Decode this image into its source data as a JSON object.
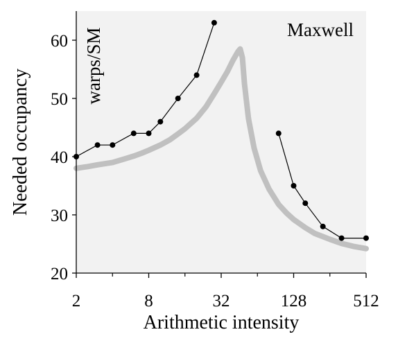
{
  "chart_data": {
    "type": "line",
    "title": "",
    "xlabel": "Arithmetic intensity",
    "ylabel": "Needed occupancy",
    "x_scale": "log2",
    "xlim": [
      2,
      512
    ],
    "ylim": [
      20,
      65
    ],
    "x_ticks": [
      2,
      8,
      32,
      128,
      512
    ],
    "x_minor_ticks": [
      4,
      16,
      64,
      256
    ],
    "x_tick_labels": [
      "2",
      "8",
      "32",
      "128",
      "512"
    ],
    "y_ticks": [
      20,
      30,
      40,
      50,
      60
    ],
    "y_tick_labels": [
      "20",
      "30",
      "40",
      "50",
      "60"
    ],
    "grid": false,
    "annotations": [
      "warps/SM",
      "Maxwell"
    ],
    "series": [
      {
        "name": "",
        "style": "thick-curve",
        "color": "#c0c0c0",
        "points": [
          [
            2,
            38.0
          ],
          [
            2.5,
            38.3
          ],
          [
            3,
            38.6
          ],
          [
            4,
            39.0
          ],
          [
            5,
            39.6
          ],
          [
            6,
            40.1
          ],
          [
            7,
            40.6
          ],
          [
            8,
            41.1
          ],
          [
            10,
            42.0
          ],
          [
            12,
            42.9
          ],
          [
            14,
            43.9
          ],
          [
            16,
            44.8
          ],
          [
            20,
            46.6
          ],
          [
            24,
            48.6
          ],
          [
            28,
            50.8
          ],
          [
            32,
            52.8
          ],
          [
            36,
            54.6
          ],
          [
            40,
            56.5
          ],
          [
            44,
            58.0
          ],
          [
            46,
            58.5
          ],
          [
            48,
            57.0
          ],
          [
            50,
            52.5
          ],
          [
            54,
            46.5
          ],
          [
            60,
            41.5
          ],
          [
            68,
            37.6
          ],
          [
            80,
            34.4
          ],
          [
            96,
            31.8
          ],
          [
            112,
            30.3
          ],
          [
            128,
            29.2
          ],
          [
            160,
            27.8
          ],
          [
            192,
            26.8
          ],
          [
            256,
            25.8
          ],
          [
            320,
            25.1
          ],
          [
            400,
            24.6
          ],
          [
            512,
            24.2
          ]
        ]
      },
      {
        "name": "",
        "style": "line-with-markers",
        "color": "#000000",
        "segments": [
          [
            [
              2,
              40
            ],
            [
              3,
              42
            ],
            [
              4,
              42
            ],
            [
              6,
              44
            ],
            [
              8,
              44
            ],
            [
              10,
              46
            ],
            [
              14,
              50
            ],
            [
              20,
              54
            ],
            [
              28,
              63
            ]
          ],
          [
            [
              96,
              44
            ],
            [
              128,
              35
            ],
            [
              160,
              32
            ],
            [
              224,
              28
            ],
            [
              320,
              26
            ],
            [
              512,
              26
            ]
          ]
        ]
      }
    ]
  }
}
